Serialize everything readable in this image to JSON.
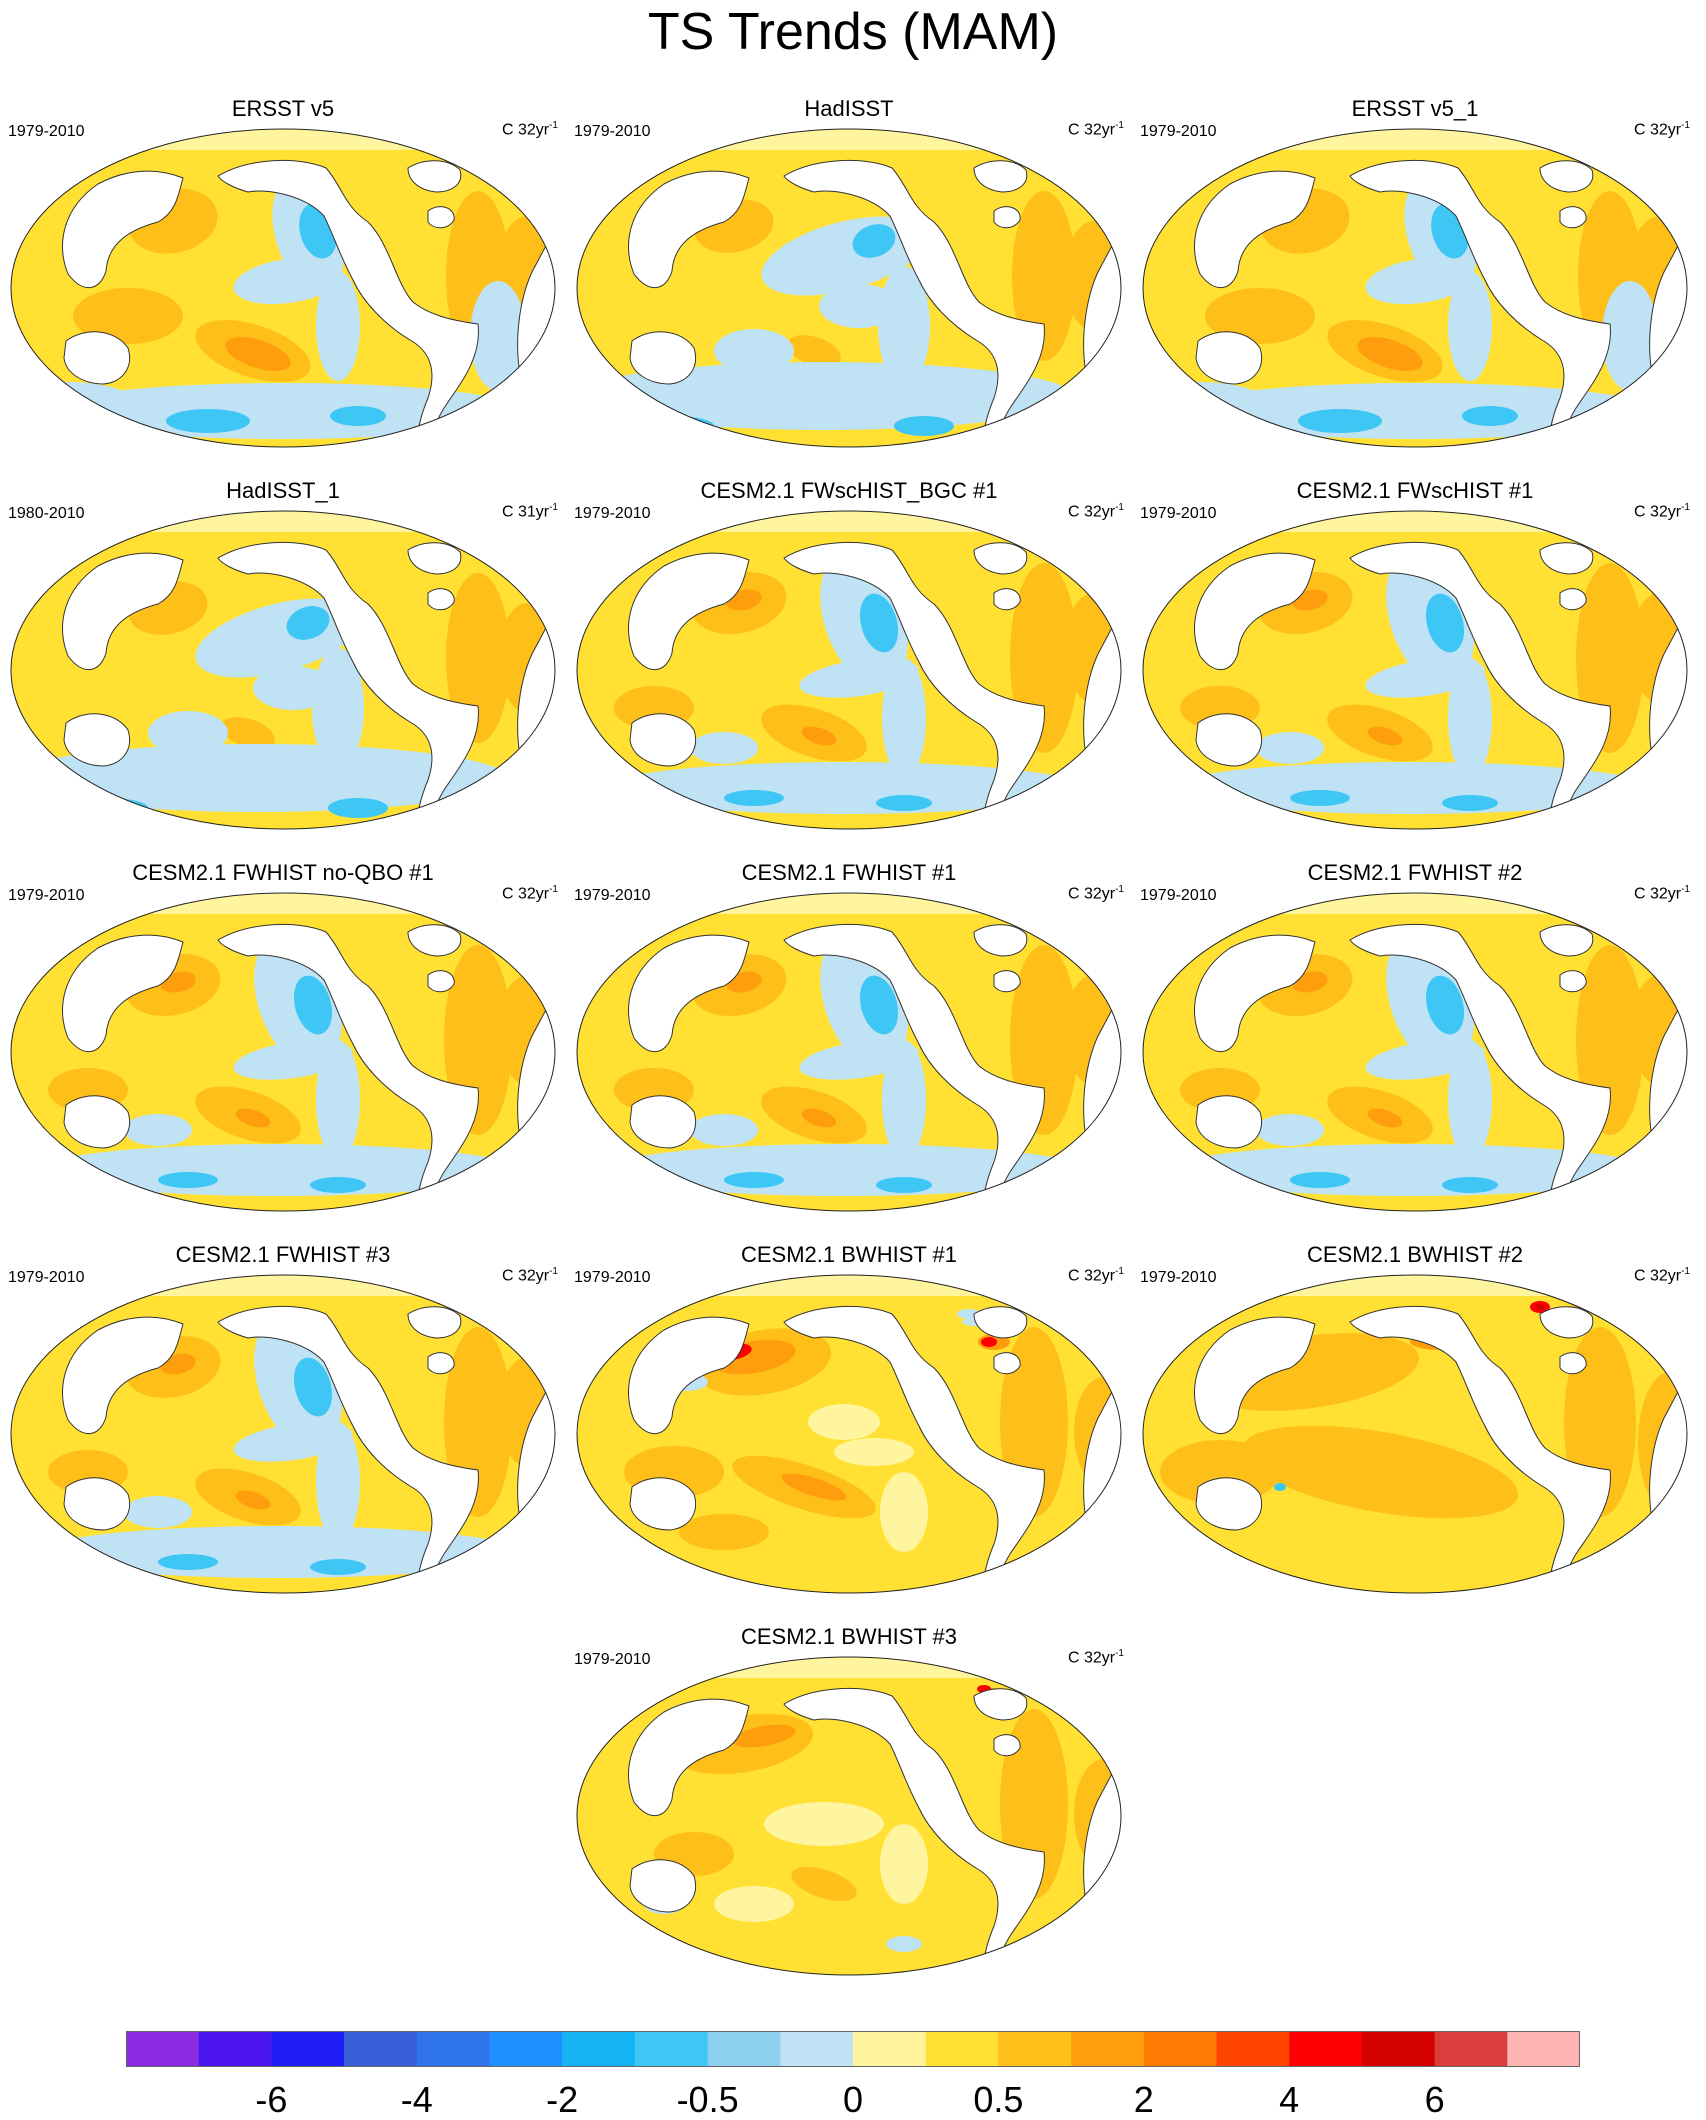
{
  "title": "TS Trends (MAM)",
  "panels": [
    {
      "title": "ERSST v5",
      "period": "1979-2010",
      "units_prefix": "C 32yr",
      "units_sup": "-1",
      "pattern": "obs_a"
    },
    {
      "title": "HadISST",
      "period": "1979-2010",
      "units_prefix": "C 32yr",
      "units_sup": "-1",
      "pattern": "obs_b"
    },
    {
      "title": "ERSST v5_1",
      "period": "1979-2010",
      "units_prefix": "C 32yr",
      "units_sup": "-1",
      "pattern": "obs_a"
    },
    {
      "title": "HadISST_1",
      "period": "1980-2010",
      "units_prefix": "C 31yr",
      "units_sup": "-1",
      "pattern": "obs_b"
    },
    {
      "title": "CESM2.1 FWscHIST_BGC #1",
      "period": "1979-2010",
      "units_prefix": "C 32yr",
      "units_sup": "-1",
      "pattern": "fw"
    },
    {
      "title": "CESM2.1 FWscHIST #1",
      "period": "1979-2010",
      "units_prefix": "C 32yr",
      "units_sup": "-1",
      "pattern": "fw"
    },
    {
      "title": "CESM2.1 FWHIST no-QBO #1",
      "period": "1979-2010",
      "units_prefix": "C 32yr",
      "units_sup": "-1",
      "pattern": "fw"
    },
    {
      "title": "CESM2.1 FWHIST #1",
      "period": "1979-2010",
      "units_prefix": "C 32yr",
      "units_sup": "-1",
      "pattern": "fw"
    },
    {
      "title": "CESM2.1 FWHIST #2",
      "period": "1979-2010",
      "units_prefix": "C 32yr",
      "units_sup": "-1",
      "pattern": "fw"
    },
    {
      "title": "CESM2.1 FWHIST #3",
      "period": "1979-2010",
      "units_prefix": "C 32yr",
      "units_sup": "-1",
      "pattern": "fw"
    },
    {
      "title": "CESM2.1 BWHIST #1",
      "period": "1979-2010",
      "units_prefix": "C 32yr",
      "units_sup": "-1",
      "pattern": "bw1"
    },
    {
      "title": "CESM2.1 BWHIST #2",
      "period": "1979-2010",
      "units_prefix": "C 32yr",
      "units_sup": "-1",
      "pattern": "bw2"
    },
    {
      "title": "CESM2.1 BWHIST #3",
      "period": "1979-2010",
      "units_prefix": "C 32yr",
      "units_sup": "-1",
      "pattern": "bw3"
    }
  ],
  "colorbar": {
    "colors": [
      "#8a2be2",
      "#4b14ec",
      "#1f1ff5",
      "#3a5ed8",
      "#2f74ea",
      "#1e90ff",
      "#14b4f5",
      "#3ec6f5",
      "#8ccfee",
      "#bfe2f4",
      "#fff59e",
      "#ffe033",
      "#ffbf19",
      "#ff9e0c",
      "#ff7d05",
      "#ff4500",
      "#ff0000",
      "#d50000",
      "#dc3c3c",
      "#ffb4b4"
    ],
    "labels": [
      "-6",
      "-4",
      "-2",
      "-0.5",
      "0",
      "0.5",
      "2",
      "4",
      "6"
    ]
  }
}
